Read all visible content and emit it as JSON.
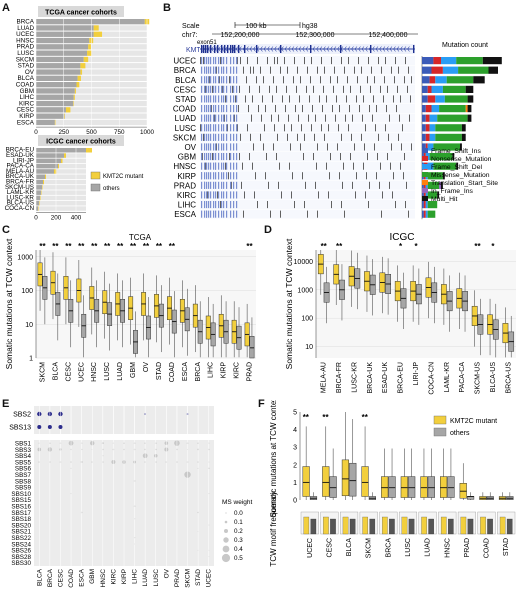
{
  "colors": {
    "mutant": "#f2cf3d",
    "others": "#a6a6a6",
    "tcga_bar_bg": "#e4e4e4",
    "title_bg": "#d9d9d9",
    "panel_bg": "#ededed",
    "dot": "#2d2d8c",
    "star": "#222222"
  },
  "panel_labels": {
    "A": "A",
    "B": "B",
    "C": "C",
    "D": "D",
    "E": "E",
    "F": "F"
  },
  "panelA": {
    "tcga": {
      "title": "TCGA cancer cohorts",
      "categories": [
        "BRCA",
        "LUAD",
        "UCEC",
        "HNSC",
        "PRAD",
        "LUSC",
        "SKCM",
        "STAD",
        "OV",
        "BLCA",
        "COAD",
        "GBM",
        "LIHC",
        "KIRC",
        "CESC",
        "KIRP",
        "ESCA"
      ],
      "mutant": [
        40,
        45,
        75,
        35,
        25,
        40,
        40,
        45,
        15,
        30,
        25,
        10,
        10,
        5,
        40,
        5,
        5
      ],
      "others": [
        980,
        520,
        520,
        480,
        470,
        460,
        430,
        400,
        400,
        375,
        365,
        350,
        340,
        335,
        270,
        255,
        170
      ],
      "xticks": [
        "0",
        "250",
        "500",
        "750",
        "1000"
      ],
      "xmax": 1000
    },
    "icgc": {
      "title": "ICGC cancer cohorts",
      "categories": [
        "BRCA-EU",
        "ESAD-UK",
        "LIRI-JP",
        "PACA-CA",
        "MELA-AU",
        "BRCA-UK",
        "BRCA-FR",
        "SKCM-US",
        "LAML-KR",
        "LUSC-KR",
        "BLCA-US",
        "COCA-CN"
      ],
      "mutant": [
        60,
        20,
        15,
        10,
        25,
        10,
        10,
        5,
        5,
        5,
        5,
        5
      ],
      "others": [
        500,
        280,
        250,
        220,
        180,
        90,
        70,
        60,
        50,
        40,
        30,
        20
      ],
      "xticks": [
        "0",
        "200",
        "400"
      ],
      "xmax": 500
    },
    "legend": {
      "mutant": "KMT2C mutant",
      "others": "others"
    }
  },
  "panelB": {
    "scale_label": "Scale",
    "scale_value": "100 kb",
    "assembly": "hg38",
    "chrom": "chr7:",
    "coords": [
      "152,200,000",
      "152,300,000",
      "152,400,000"
    ],
    "gene": "KMT2C",
    "exon_left": "exon51",
    "exon_right": "exon1",
    "tracks": [
      "UCEC",
      "BRCA",
      "BLCA",
      "CESC",
      "STAD",
      "COAD",
      "LUAD",
      "LUSC",
      "SKCM",
      "OV",
      "GBM",
      "HNSC",
      "KIRP",
      "PRAD",
      "KIRC",
      "LIHC",
      "ESCA"
    ],
    "mutation_count_title": "Mutation count",
    "mutation_types": [
      {
        "name": "Frame_Shift_Ins",
        "color": "#3b5bb8"
      },
      {
        "name": "Nonsense_Mutation",
        "color": "#d62728"
      },
      {
        "name": "Frame_Shift_Del",
        "color": "#2a9df4"
      },
      {
        "name": "Missense_Mutation",
        "color": "#2ca02c"
      },
      {
        "name": "Translation_Start_Site",
        "color": "#ff7f0e"
      },
      {
        "name": "In_Frame_Ins",
        "color": "#9467bd"
      },
      {
        "name": "Multi_Hit",
        "color": "#111111"
      }
    ]
  },
  "panelC": {
    "title": "TCGA",
    "ylabel": "Somatic mutations at TCW context",
    "yticks": [
      "1",
      "10",
      "100",
      "1000"
    ],
    "categories": [
      "SKCM",
      "BLCA",
      "CESC",
      "UCEC",
      "HNSC",
      "LUSC",
      "LUAD",
      "GBM",
      "OV",
      "STAD",
      "COAD",
      "ESCA",
      "BRCA",
      "LIHC",
      "KIRP",
      "KIRC",
      "PRAD"
    ],
    "significance": [
      "**",
      "**",
      "**",
      "**",
      "**",
      "**",
      "**",
      "**",
      "**",
      "**",
      "**",
      "",
      "",
      "",
      "",
      "",
      "**"
    ],
    "mutant_medians": [
      300,
      170,
      120,
      100,
      60,
      45,
      40,
      30,
      40,
      35,
      30,
      25,
      18,
      8,
      9,
      6,
      5
    ],
    "others_medians": [
      120,
      40,
      25,
      9,
      25,
      20,
      25,
      3,
      8,
      18,
      12,
      14,
      6,
      5,
      6,
      4,
      2
    ]
  },
  "panelD": {
    "title": "ICGC",
    "ylabel": "Somatic mutations at TCW context",
    "yticks": [
      "10",
      "100",
      "1000",
      "10000"
    ],
    "categories": [
      "MELA-AU",
      "BRCA-FR",
      "LUSC-KR",
      "BRCA-UK",
      "ESAD-UK",
      "BRCA-EU",
      "LIRI-JP",
      "COCA-CN",
      "LAML-KR",
      "PACA-CA",
      "SKCM-US",
      "BLCA-US",
      "BRCA-US"
    ],
    "significance": [
      "**",
      "**",
      "",
      "",
      "",
      "*",
      "*",
      "",
      "",
      "",
      "**",
      "*",
      ""
    ],
    "mutant_medians": [
      8000,
      3500,
      3000,
      2000,
      1800,
      900,
      900,
      1200,
      700,
      500,
      120,
      60,
      30
    ],
    "others_medians": [
      800,
      1000,
      2500,
      1500,
      1600,
      500,
      700,
      800,
      400,
      400,
      60,
      40,
      15
    ]
  },
  "panelE": {
    "rows_top": [
      "SBS2",
      "SBS13"
    ],
    "rows_bottom": [
      "SBS1",
      "SBS3",
      "SBS4",
      "SBS5",
      "SBS6",
      "SBS7",
      "SBS8",
      "SBS9",
      "SBS10",
      "SBS15",
      "SBS16",
      "SBS17",
      "SBS18",
      "SBS20",
      "SBS21",
      "SBS22",
      "SBS24",
      "SBS26",
      "SBS28",
      "SBS30"
    ],
    "columns": [
      "BLCA",
      "BRCA",
      "CESC",
      "COAD",
      "ESCA",
      "GBM",
      "HNSC",
      "KIRC",
      "KIRP",
      "LIHC",
      "LUAD",
      "LUSC",
      "OV",
      "PRAD",
      "SKCM",
      "STAD",
      "UCEC"
    ],
    "legend_title": "MS weight",
    "legend_values": [
      "0.0",
      "0.1",
      "0.2",
      "0.3",
      "0.4",
      "0.5"
    ]
  },
  "panelF": {
    "ylabel_top": "Somatic mutations at TCW context",
    "ylabel_bottom": "TCW motif frequency",
    "yticks_top": [
      "0",
      "1",
      "2",
      "3",
      "4",
      "5"
    ],
    "categories": [
      "UCEC",
      "CESC",
      "BLCA",
      "SKCM",
      "BRCA",
      "LUSC",
      "LUAD",
      "HNSC",
      "PRAD",
      "COAD",
      "STAD"
    ],
    "significance": [
      "**",
      "**",
      "",
      "**",
      "",
      "",
      "",
      "",
      "",
      "",
      ""
    ],
    "mutant_medians": [
      1.0,
      1.0,
      1.2,
      1.0,
      0.7,
      0.7,
      0.7,
      0.7,
      0.5,
      0.1,
      0.1
    ],
    "others_medians": [
      0.1,
      0.7,
      1.1,
      0.1,
      0.7,
      0.7,
      0.7,
      0.7,
      0.2,
      0.1,
      0.1
    ],
    "small_tick_labels": [
      "0.5",
      "0.4",
      "0.3",
      "0.2",
      "0.1"
    ],
    "legend": {
      "mutant": "KMT2C mutant",
      "others": "others"
    }
  }
}
